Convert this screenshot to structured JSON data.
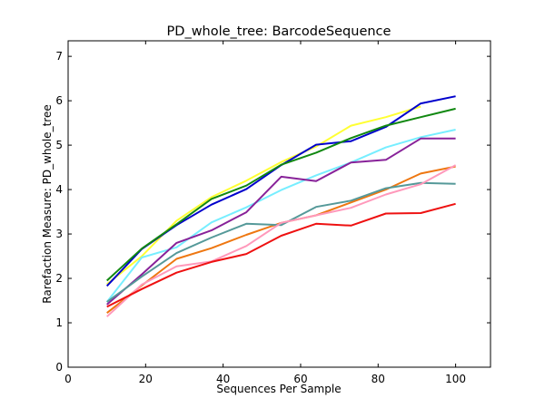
{
  "chart_data": {
    "type": "line",
    "title": "PD_whole_tree: BarcodeSequence",
    "xlabel": "Sequences Per Sample",
    "ylabel": "Rarefaction Measure: PD_whole_tree",
    "xlim": [
      0,
      109
    ],
    "ylim": [
      0,
      7.35
    ],
    "x_ticks": [
      0,
      20,
      40,
      60,
      80,
      100
    ],
    "y_ticks": [
      0,
      1,
      2,
      3,
      4,
      5,
      6,
      7
    ],
    "grid": false,
    "legend": "none",
    "x": [
      10,
      19,
      28,
      37,
      46,
      55,
      64,
      73,
      82,
      91,
      100
    ],
    "series": [
      {
        "color": "#ffff33",
        "values": [
          1.87,
          2.5,
          3.3,
          3.83,
          4.2,
          4.62,
          4.97,
          5.44,
          5.63,
          5.87,
          null
        ]
      },
      {
        "color": "#0000cc",
        "values": [
          1.83,
          2.66,
          3.2,
          3.66,
          4.01,
          4.55,
          5.01,
          5.09,
          5.41,
          5.94,
          6.1
        ]
      },
      {
        "color": "#118811",
        "values": [
          1.95,
          2.67,
          3.22,
          3.79,
          4.09,
          4.56,
          4.83,
          5.16,
          5.44,
          5.63,
          5.82
        ]
      },
      {
        "color": "#77eeff",
        "values": [
          1.47,
          2.47,
          2.7,
          3.26,
          3.6,
          3.99,
          4.32,
          4.61,
          4.95,
          5.18,
          5.35
        ]
      },
      {
        "color": "#882299",
        "values": [
          1.41,
          2.09,
          2.8,
          3.08,
          3.49,
          4.29,
          4.19,
          4.61,
          4.67,
          5.15,
          5.15
        ]
      },
      {
        "color": "#ee7711",
        "values": [
          1.22,
          1.84,
          2.44,
          2.68,
          2.98,
          3.25,
          3.42,
          3.71,
          4.0,
          4.36,
          4.52
        ]
      },
      {
        "color": "#559999",
        "values": [
          1.47,
          2.04,
          2.57,
          2.92,
          3.23,
          3.2,
          3.61,
          3.75,
          4.03,
          4.15,
          4.13
        ]
      },
      {
        "color": "#ff99bb",
        "values": [
          1.14,
          1.86,
          2.27,
          2.38,
          2.73,
          3.25,
          3.42,
          3.59,
          3.89,
          4.12,
          4.55
        ]
      },
      {
        "color": "#ee1111",
        "values": [
          1.36,
          1.76,
          2.13,
          2.37,
          2.55,
          2.96,
          3.23,
          3.19,
          3.46,
          3.47,
          3.68
        ]
      }
    ]
  }
}
